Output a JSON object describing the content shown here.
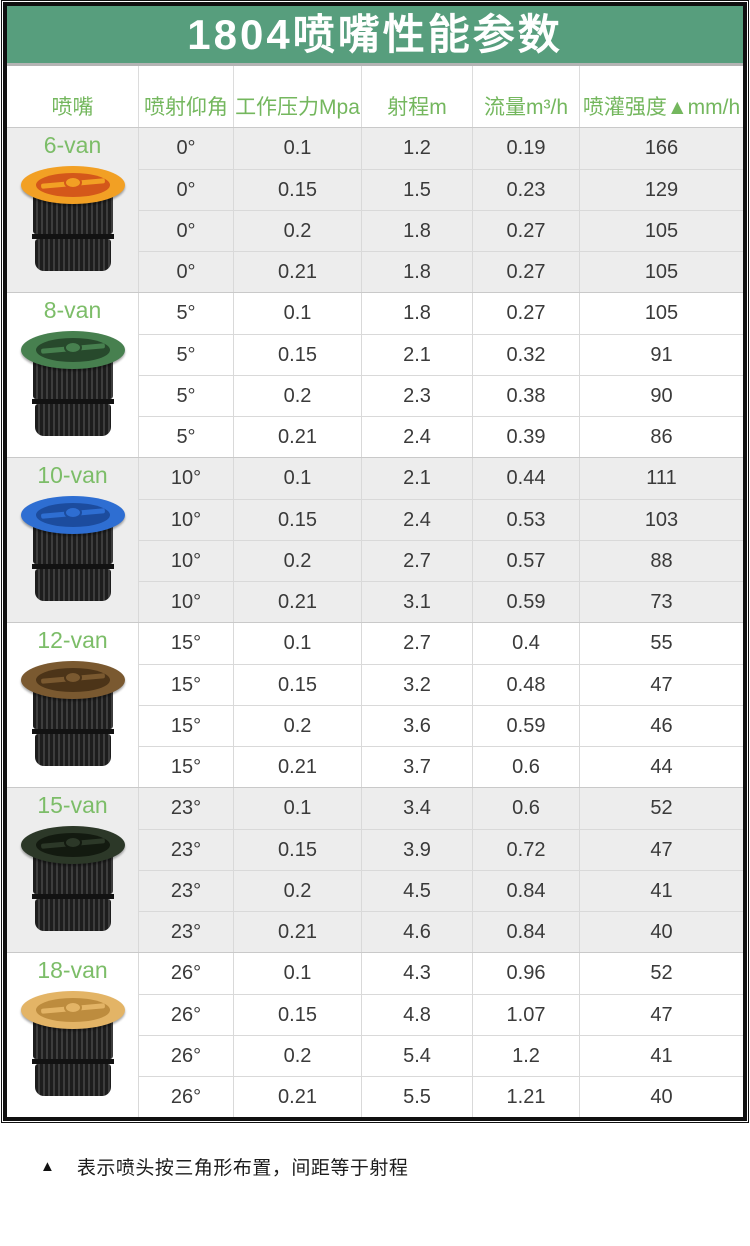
{
  "banner": {
    "title": "1804喷嘴性能参数",
    "bg_color": "#579e7d",
    "text_color": "#ffffff"
  },
  "table": {
    "header_text_color": "#74b75e",
    "label_color": "#7cbd68",
    "zebra_gray": "#ededed",
    "headers": [
      "喷嘴",
      "喷射仰角",
      "工作压力Mpa",
      "射程m",
      "流量m³/h",
      "喷灌强度▲mm/h"
    ],
    "groups": [
      {
        "name": "6-van",
        "cap_color": "#f2a024",
        "cap_inner_color": "#d4581a",
        "rows": [
          [
            "0°",
            "0.1",
            "1.2",
            "0.19",
            "166"
          ],
          [
            "0°",
            "0.15",
            "1.5",
            "0.23",
            "129"
          ],
          [
            "0°",
            "0.2",
            "1.8",
            "0.27",
            "105"
          ],
          [
            "0°",
            "0.21",
            "1.8",
            "0.27",
            "105"
          ]
        ]
      },
      {
        "name": "8-van",
        "cap_color": "#47804f",
        "cap_inner_color": "#27492c",
        "rows": [
          [
            "5°",
            "0.1",
            "1.8",
            "0.27",
            "105"
          ],
          [
            "5°",
            "0.15",
            "2.1",
            "0.32",
            "91"
          ],
          [
            "5°",
            "0.2",
            "2.3",
            "0.38",
            "90"
          ],
          [
            "5°",
            "0.21",
            "2.4",
            "0.39",
            "86"
          ]
        ]
      },
      {
        "name": "10-van",
        "cap_color": "#2e6ed2",
        "cap_inner_color": "#1c4c9e",
        "rows": [
          [
            "10°",
            "0.1",
            "2.1",
            "0.44",
            "111"
          ],
          [
            "10°",
            "0.15",
            "2.4",
            "0.53",
            "103"
          ],
          [
            "10°",
            "0.2",
            "2.7",
            "0.57",
            "88"
          ],
          [
            "10°",
            "0.21",
            "3.1",
            "0.59",
            "73"
          ]
        ]
      },
      {
        "name": "12-van",
        "cap_color": "#7a5930",
        "cap_inner_color": "#4c3418",
        "rows": [
          [
            "15°",
            "0.1",
            "2.7",
            "0.4",
            "55"
          ],
          [
            "15°",
            "0.15",
            "3.2",
            "0.48",
            "47"
          ],
          [
            "15°",
            "0.2",
            "3.6",
            "0.59",
            "46"
          ],
          [
            "15°",
            "0.21",
            "3.7",
            "0.6",
            "44"
          ]
        ]
      },
      {
        "name": "15-van",
        "cap_color": "#2c3828",
        "cap_inner_color": "#131a10",
        "rows": [
          [
            "23°",
            "0.1",
            "3.4",
            "0.6",
            "52"
          ],
          [
            "23°",
            "0.15",
            "3.9",
            "0.72",
            "47"
          ],
          [
            "23°",
            "0.2",
            "4.5",
            "0.84",
            "41"
          ],
          [
            "23°",
            "0.21",
            "4.6",
            "0.84",
            "40"
          ]
        ]
      },
      {
        "name": "18-van",
        "cap_color": "#e3b466",
        "cap_inner_color": "#bd8c3e",
        "rows": [
          [
            "26°",
            "0.1",
            "4.3",
            "0.96",
            "52"
          ],
          [
            "26°",
            "0.15",
            "4.8",
            "1.07",
            "47"
          ],
          [
            "26°",
            "0.2",
            "5.4",
            "1.2",
            "41"
          ],
          [
            "26°",
            "0.21",
            "5.5",
            "1.21",
            "40"
          ]
        ]
      }
    ]
  },
  "footnote": {
    "marker": "▲",
    "text": "表示喷头按三角形布置，间距等于射程"
  }
}
